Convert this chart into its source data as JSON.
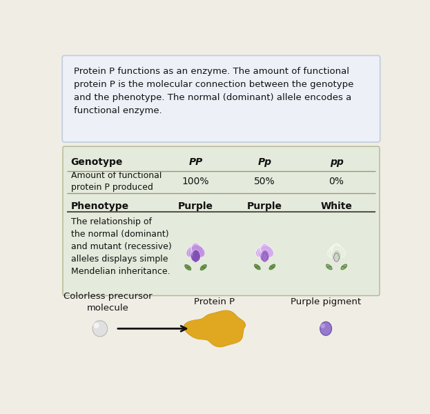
{
  "bg_color": "#f0ede5",
  "top_box_bg": "#edf0f7",
  "top_box_edge": "#c0ccdd",
  "top_box_text": "Protein P functions as an enzyme. The amount of functional\nprotein P is the molecular connection between the genotype\nand the phenotype. The normal (dominant) allele encodes a\nfunctional enzyme.",
  "table_bg": "#e4eadc",
  "table_edge": "#b0b890",
  "table_header_row": [
    "Genotype",
    "PP",
    "Pp",
    "pp"
  ],
  "table_row2_label": "Amount of functional\nprotein P produced",
  "table_row2_vals": [
    "100%",
    "50%",
    "0%"
  ],
  "phenotype_label": "Phenotype",
  "phenotype_vals": [
    "Purple",
    "Purple",
    "White"
  ],
  "flower_text": "The relationship of\nthe normal (dominant)\nand mutant (recessive)\nalleles displays simple\nMendelian inheritance.",
  "bottom_labels": [
    "Colorless precursor\nmolecule",
    "Protein P",
    "Purple pigment"
  ],
  "line_color": "#999977",
  "text_color": "#111111"
}
